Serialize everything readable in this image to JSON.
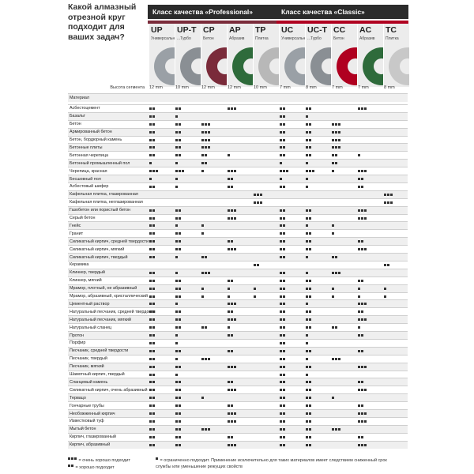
{
  "question": "Какой алмазный отрезной круг подходит для ваших задач?",
  "classes": [
    {
      "title": "Класс качества «Professional»",
      "accent": "#7a2b3a"
    },
    {
      "title": "Класс качества «Classic»",
      "accent": "#b00020"
    }
  ],
  "products": [
    {
      "code": "UP",
      "desc": "Универсальный",
      "color": "#9aa0a6"
    },
    {
      "code": "UP-T",
      "desc": "...Турбо",
      "color": "#8a8f94"
    },
    {
      "code": "CP",
      "desc": "Бетон",
      "color": "#7a2b3a"
    },
    {
      "code": "AP",
      "desc": "Абразив",
      "color": "#2e6b3b"
    },
    {
      "code": "TP",
      "desc": "Плитка",
      "color": "#b8b8b8"
    },
    {
      "code": "UC",
      "desc": "Универсальный",
      "color": "#9aa0a6"
    },
    {
      "code": "UC-T",
      "desc": "...Турбо",
      "color": "#8a8f94"
    },
    {
      "code": "CC",
      "desc": "Бетон",
      "color": "#b00020"
    },
    {
      "code": "AC",
      "desc": "Абразив",
      "color": "#2e6b3b"
    },
    {
      "code": "TC",
      "desc": "Плитка",
      "color": "#c8c8c8"
    }
  ],
  "segment_label": "Высота сегмента",
  "segment_heights": [
    "12 mm",
    "10 mm",
    "12 mm",
    "12 mm",
    "10 mm",
    "7 mm",
    "8 mm",
    "7 mm",
    "7 mm",
    "8 mm"
  ],
  "header_row": "Материал",
  "rows": [
    {
      "m": "Асбестоцемент",
      "r": [
        2,
        2,
        0,
        3,
        0,
        2,
        2,
        0,
        3,
        0
      ]
    },
    {
      "m": "Базальт",
      "r": [
        2,
        1,
        0,
        0,
        0,
        2,
        1,
        0,
        0,
        0
      ]
    },
    {
      "m": "Бетон",
      "r": [
        2,
        2,
        3,
        0,
        0,
        2,
        2,
        3,
        0,
        0
      ]
    },
    {
      "m": "Армированный бетон",
      "r": [
        2,
        2,
        3,
        0,
        0,
        2,
        2,
        3,
        0,
        0
      ]
    },
    {
      "m": "Бетон, бордюрный камень",
      "r": [
        2,
        2,
        3,
        0,
        0,
        2,
        2,
        3,
        0,
        0
      ]
    },
    {
      "m": "Бетонные плиты",
      "r": [
        2,
        2,
        3,
        0,
        0,
        2,
        2,
        3,
        0,
        0
      ]
    },
    {
      "m": "Бетонная черепица",
      "r": [
        2,
        2,
        2,
        1,
        0,
        2,
        2,
        2,
        1,
        0
      ]
    },
    {
      "m": "Бетонный промышленный пол",
      "r": [
        1,
        1,
        2,
        0,
        0,
        1,
        1,
        2,
        0,
        0
      ]
    },
    {
      "m": "Черепица, красная",
      "r": [
        3,
        3,
        1,
        3,
        0,
        3,
        3,
        1,
        3,
        0
      ]
    },
    {
      "m": "Бесшовный пол",
      "r": [
        1,
        1,
        0,
        2,
        0,
        1,
        1,
        0,
        2,
        0
      ]
    },
    {
      "m": "Асбестовый шифер",
      "r": [
        2,
        1,
        0,
        2,
        0,
        2,
        1,
        0,
        2,
        0
      ]
    },
    {
      "m": "Кафельная плитка, глазированная",
      "r": [
        0,
        0,
        0,
        0,
        3,
        0,
        0,
        0,
        0,
        3
      ]
    },
    {
      "m": "Кафельная плитка, неглазированная",
      "r": [
        0,
        0,
        0,
        0,
        3,
        0,
        0,
        0,
        0,
        3
      ]
    },
    {
      "m": "Газобетон или пористый бетон",
      "r": [
        2,
        2,
        0,
        3,
        0,
        2,
        2,
        0,
        3,
        0
      ]
    },
    {
      "m": "Серый бетон",
      "r": [
        2,
        2,
        0,
        3,
        0,
        2,
        2,
        0,
        3,
        0
      ]
    },
    {
      "m": "Гнейс",
      "r": [
        2,
        1,
        1,
        0,
        0,
        2,
        1,
        1,
        0,
        0
      ]
    },
    {
      "m": "Гранит",
      "r": [
        2,
        2,
        1,
        0,
        0,
        2,
        2,
        1,
        0,
        0
      ]
    },
    {
      "m": "Силикатный кирпич, средней твердости",
      "r": [
        2,
        2,
        0,
        2,
        0,
        2,
        2,
        0,
        2,
        0
      ]
    },
    {
      "m": "Силикатный кирпич, мягкий",
      "r": [
        2,
        2,
        0,
        3,
        0,
        2,
        2,
        0,
        3,
        0
      ]
    },
    {
      "m": "Силикатный кирпич, твердый",
      "r": [
        2,
        1,
        2,
        0,
        0,
        2,
        1,
        2,
        0,
        0
      ]
    },
    {
      "m": "Керамика",
      "r": [
        0,
        0,
        0,
        0,
        2,
        0,
        0,
        0,
        0,
        2
      ]
    },
    {
      "m": "Клинкер, твердый",
      "r": [
        2,
        1,
        3,
        0,
        0,
        2,
        1,
        3,
        0,
        0
      ]
    },
    {
      "m": "Клинкер, мягкий",
      "r": [
        2,
        2,
        0,
        2,
        0,
        2,
        2,
        0,
        2,
        0
      ]
    },
    {
      "m": "Мрамор, плотный, не абразивный",
      "r": [
        2,
        2,
        1,
        1,
        1,
        2,
        2,
        1,
        1,
        1
      ]
    },
    {
      "m": "Мрамор, абразивный, кристаллический",
      "r": [
        2,
        2,
        1,
        1,
        1,
        2,
        2,
        1,
        1,
        1
      ]
    },
    {
      "m": "Цементный раствор",
      "r": [
        2,
        1,
        0,
        3,
        0,
        2,
        1,
        0,
        3,
        0
      ]
    },
    {
      "m": "Натуральный песчаник, средней твердости",
      "r": [
        2,
        2,
        0,
        2,
        0,
        2,
        2,
        0,
        2,
        0
      ]
    },
    {
      "m": "Натуральный песчаник, мягкий",
      "r": [
        2,
        2,
        0,
        3,
        0,
        2,
        2,
        0,
        3,
        0
      ]
    },
    {
      "m": "Натуральный сланец",
      "r": [
        2,
        2,
        2,
        1,
        0,
        2,
        2,
        2,
        1,
        0
      ]
    },
    {
      "m": "Протон",
      "r": [
        2,
        1,
        0,
        2,
        0,
        2,
        1,
        0,
        2,
        0
      ]
    },
    {
      "m": "Порфир",
      "r": [
        2,
        1,
        0,
        0,
        0,
        2,
        1,
        0,
        0,
        0
      ]
    },
    {
      "m": "Песчаник, средней твердости",
      "r": [
        2,
        2,
        0,
        2,
        0,
        2,
        2,
        0,
        2,
        0
      ]
    },
    {
      "m": "Песчаник, твердый",
      "r": [
        2,
        1,
        3,
        0,
        0,
        2,
        1,
        3,
        0,
        0
      ]
    },
    {
      "m": "Песчаник, мягкий",
      "r": [
        2,
        2,
        0,
        3,
        0,
        2,
        2,
        0,
        3,
        0
      ]
    },
    {
      "m": "Шамотный кирпич, твердый",
      "r": [
        2,
        1,
        0,
        0,
        0,
        2,
        1,
        0,
        0,
        0
      ]
    },
    {
      "m": "Сланцевый камень",
      "r": [
        2,
        2,
        0,
        2,
        0,
        2,
        2,
        0,
        2,
        0
      ]
    },
    {
      "m": "Силикатный кирпич, очень абразивный",
      "r": [
        2,
        2,
        0,
        3,
        0,
        2,
        2,
        0,
        3,
        0
      ]
    },
    {
      "m": "Тервацо",
      "r": [
        2,
        2,
        1,
        0,
        0,
        2,
        2,
        1,
        0,
        0
      ]
    },
    {
      "m": "Гончарные трубы",
      "r": [
        2,
        2,
        0,
        2,
        0,
        2,
        2,
        0,
        2,
        0
      ]
    },
    {
      "m": "Необожженный кирпич",
      "r": [
        2,
        2,
        0,
        3,
        0,
        2,
        2,
        0,
        3,
        0
      ]
    },
    {
      "m": "Известковый туф",
      "r": [
        2,
        2,
        0,
        3,
        0,
        2,
        2,
        0,
        3,
        0
      ]
    },
    {
      "m": "Мытый бетон",
      "r": [
        2,
        2,
        3,
        0,
        0,
        2,
        2,
        3,
        0,
        0
      ]
    },
    {
      "m": "Кирпич, глазированный",
      "r": [
        2,
        2,
        0,
        2,
        0,
        2,
        2,
        0,
        2,
        0
      ]
    },
    {
      "m": "Кирпич, абразивный",
      "r": [
        2,
        2,
        0,
        3,
        0,
        2,
        2,
        0,
        3,
        0
      ]
    }
  ],
  "legend": {
    "three": "= очень хорошо подходит",
    "two": "= хорошо подходит",
    "one": "= ограниченно подходит. Применение исключительно для таких материалов имеет следствием сниженный срок службы или уменьшение режущих свойств"
  }
}
